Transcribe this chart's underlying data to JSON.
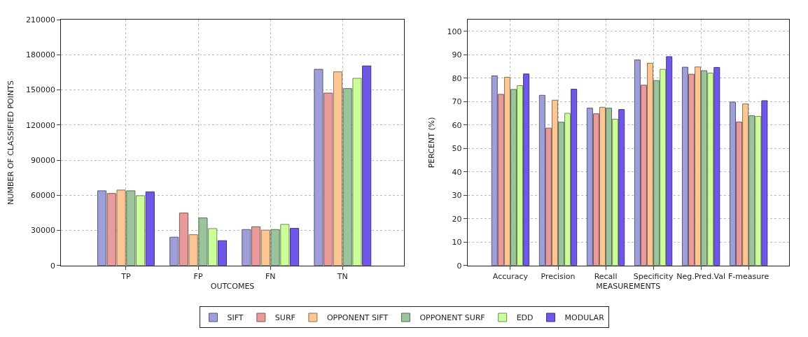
{
  "chart_data": [
    {
      "type": "bar",
      "xlabel": "OUTCOMES",
      "ylabel": "NUMBER OF CLASSIFIED POINTS",
      "categories": [
        "TP",
        "FP",
        "FN",
        "TN"
      ],
      "ylim": [
        0,
        210000
      ],
      "yticks": [
        0,
        30000,
        60000,
        90000,
        120000,
        150000,
        180000,
        210000
      ],
      "grid": true,
      "legend": "bottom",
      "series": [
        {
          "name": "SIFT",
          "color": "#9e9ed8",
          "values": [
            63800,
            24200,
            30700,
            167600
          ]
        },
        {
          "name": "SURF",
          "color": "#e99a9a",
          "values": [
            61500,
            44800,
            33100,
            147300
          ]
        },
        {
          "name": "OPPONENT SIFT",
          "color": "#fdc794",
          "values": [
            64400,
            26300,
            30200,
            165400
          ]
        },
        {
          "name": "OPPONENT SURF",
          "color": "#9cc49c",
          "values": [
            63800,
            40600,
            30700,
            151100
          ]
        },
        {
          "name": "EDD",
          "color": "#ccff99",
          "values": [
            59600,
            31500,
            35100,
            159900
          ]
        },
        {
          "name": "MODULAR",
          "color": "#6f58e8",
          "values": [
            62900,
            21200,
            31700,
            170500
          ]
        }
      ]
    },
    {
      "type": "bar",
      "xlabel": "MEASUREMENTS",
      "ylabel": "PERCENT (%)",
      "categories": [
        "Accuracy",
        "Precision",
        "Recall",
        "Specificity",
        "Neg.Pred.Val",
        "F-measure"
      ],
      "ylim": [
        0,
        105
      ],
      "yticks": [
        0,
        10,
        20,
        30,
        40,
        50,
        60,
        70,
        80,
        90,
        100
      ],
      "grid": true,
      "series": [
        {
          "color": "#9e9ed8",
          "values": [
            81.0,
            72.7,
            67.2,
            87.8,
            84.7,
            69.8
          ]
        },
        {
          "color": "#e99a9a",
          "values": [
            73.1,
            58.7,
            64.8,
            77.0,
            81.7,
            61.3
          ]
        },
        {
          "color": "#fdc794",
          "values": [
            80.4,
            70.6,
            67.6,
            86.4,
            84.8,
            69.0
          ]
        },
        {
          "color": "#9cc49c",
          "values": [
            75.2,
            61.2,
            67.2,
            79.0,
            83.2,
            64.0
          ]
        },
        {
          "color": "#ccff99",
          "values": [
            76.8,
            65.0,
            62.5,
            83.8,
            82.2,
            63.7
          ]
        },
        {
          "color": "#6f58e8",
          "values": [
            81.8,
            75.3,
            66.6,
            89.2,
            84.6,
            70.4
          ]
        }
      ]
    }
  ]
}
